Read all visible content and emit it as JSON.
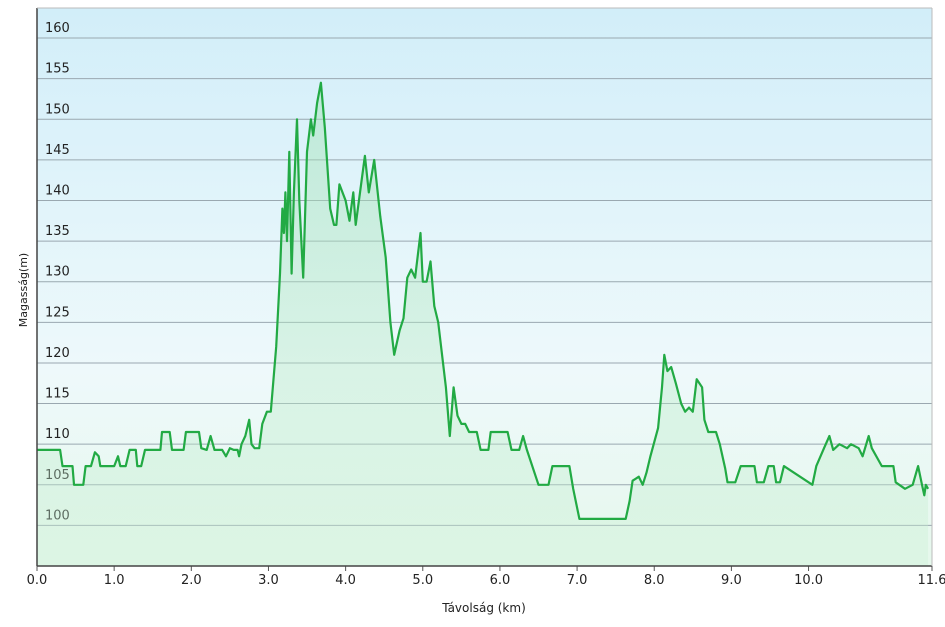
{
  "chart_data": {
    "type": "line",
    "x_label": "Távolság  (km)",
    "y_label": "Magasság(m)",
    "xlim": [
      0,
      11.6
    ],
    "ylim": [
      95,
      163.7
    ],
    "xticks": [
      {
        "value": 0,
        "label": "0.0"
      },
      {
        "value": 1,
        "label": "1.0"
      },
      {
        "value": 2,
        "label": "2.0"
      },
      {
        "value": 3,
        "label": "3.0"
      },
      {
        "value": 4,
        "label": "4.0"
      },
      {
        "value": 5,
        "label": "5.0"
      },
      {
        "value": 6,
        "label": "6.0"
      },
      {
        "value": 7,
        "label": "7.0"
      },
      {
        "value": 8,
        "label": "8.0"
      },
      {
        "value": 9,
        "label": "9.0"
      },
      {
        "value": 10,
        "label": "10.0"
      },
      {
        "value": 11.6,
        "label": "11.6"
      }
    ],
    "yticks": [
      100,
      105,
      110,
      115,
      120,
      125,
      130,
      135,
      140,
      145,
      150,
      155,
      160
    ],
    "grid": true,
    "color": "#22aa44",
    "x": [
      0,
      0.3,
      0.33,
      0.46,
      0.48,
      0.6,
      0.63,
      0.7,
      0.75,
      0.8,
      0.82,
      1.0,
      1.05,
      1.08,
      1.15,
      1.2,
      1.28,
      1.3,
      1.35,
      1.4,
      1.6,
      1.62,
      1.72,
      1.75,
      1.9,
      1.93,
      2.1,
      2.13,
      2.2,
      2.25,
      2.3,
      2.4,
      2.45,
      2.5,
      2.55,
      2.6,
      2.62,
      2.65,
      2.7,
      2.75,
      2.78,
      2.82,
      2.88,
      2.92,
      2.98,
      3.03,
      3.1,
      3.15,
      3.18,
      3.2,
      3.22,
      3.24,
      3.27,
      3.3,
      3.33,
      3.37,
      3.4,
      3.45,
      3.5,
      3.55,
      3.58,
      3.63,
      3.68,
      3.73,
      3.8,
      3.85,
      3.88,
      3.92,
      4.0,
      4.05,
      4.1,
      4.13,
      4.2,
      4.25,
      4.3,
      4.37,
      4.45,
      4.52,
      4.58,
      4.63,
      4.7,
      4.75,
      4.8,
      4.85,
      4.9,
      4.97,
      5.0,
      5.05,
      5.1,
      5.15,
      5.2,
      5.3,
      5.35,
      5.4,
      5.45,
      5.5,
      5.55,
      5.6,
      5.7,
      5.75,
      5.85,
      5.88,
      6.1,
      6.15,
      6.25,
      6.3,
      6.35,
      6.5,
      6.63,
      6.68,
      6.9,
      6.95,
      7.03,
      7.63,
      7.68,
      7.72,
      7.8,
      7.85,
      7.9,
      7.95,
      8.05,
      8.1,
      8.13,
      8.17,
      8.22,
      8.28,
      8.35,
      8.4,
      8.45,
      8.5,
      8.55,
      8.62,
      8.65,
      8.7,
      8.8,
      8.85,
      8.92,
      8.95,
      9.05,
      9.12,
      9.3,
      9.33,
      9.42,
      9.48,
      9.55,
      9.58,
      9.63,
      9.68,
      10.05,
      10.1,
      10.2,
      10.27,
      10.32,
      10.4,
      10.5,
      10.55,
      10.65,
      10.7,
      10.78,
      10.82,
      10.95,
      11.1,
      11.13,
      11.25,
      11.35,
      11.42,
      11.47,
      11.5,
      11.52,
      11.55
    ],
    "values": [
      109.3,
      109.3,
      107.3,
      107.3,
      105,
      105,
      107.3,
      107.3,
      109,
      108.5,
      107.3,
      107.3,
      108.5,
      107.3,
      107.3,
      109.3,
      109.3,
      107.3,
      107.3,
      109.3,
      109.3,
      111.5,
      111.5,
      109.3,
      109.3,
      111.5,
      111.5,
      109.5,
      109.3,
      111,
      109.3,
      109.3,
      108.5,
      109.5,
      109.3,
      109.3,
      108.5,
      110,
      111,
      113,
      110,
      109.5,
      109.5,
      112.5,
      114,
      114,
      122,
      131,
      139,
      136,
      141,
      135,
      146,
      131,
      141,
      150,
      140,
      130.5,
      146,
      150,
      148,
      152,
      154.5,
      149,
      139,
      137,
      137,
      142,
      140,
      137.5,
      141,
      137,
      142,
      145.5,
      141,
      145,
      138,
      133,
      125,
      121,
      124,
      125.5,
      130.5,
      131.5,
      130.5,
      136,
      130,
      130,
      132.5,
      127,
      125,
      117,
      111,
      117,
      113.5,
      112.5,
      112.5,
      111.5,
      111.5,
      109.3,
      109.3,
      111.5,
      111.5,
      109.3,
      109.3,
      111,
      109.3,
      105,
      105,
      107.3,
      107.3,
      104.5,
      100.8,
      100.8,
      103,
      105.5,
      106,
      105,
      106.5,
      108.5,
      112,
      117,
      121,
      119,
      119.5,
      117.5,
      115,
      114,
      114.5,
      114,
      118,
      117,
      113,
      111.5,
      111.5,
      110,
      107,
      105.3,
      105.3,
      107.3,
      107.3,
      105.3,
      105.3,
      107.3,
      107.3,
      105.3,
      105.3,
      107.3,
      105,
      107.3,
      109.5,
      111,
      109.3,
      110,
      109.5,
      110,
      109.5,
      108.5,
      111,
      109.5,
      107.3,
      107.3,
      105.3,
      104.5,
      105,
      107.3,
      105,
      103.7,
      105,
      104.5
    ]
  }
}
